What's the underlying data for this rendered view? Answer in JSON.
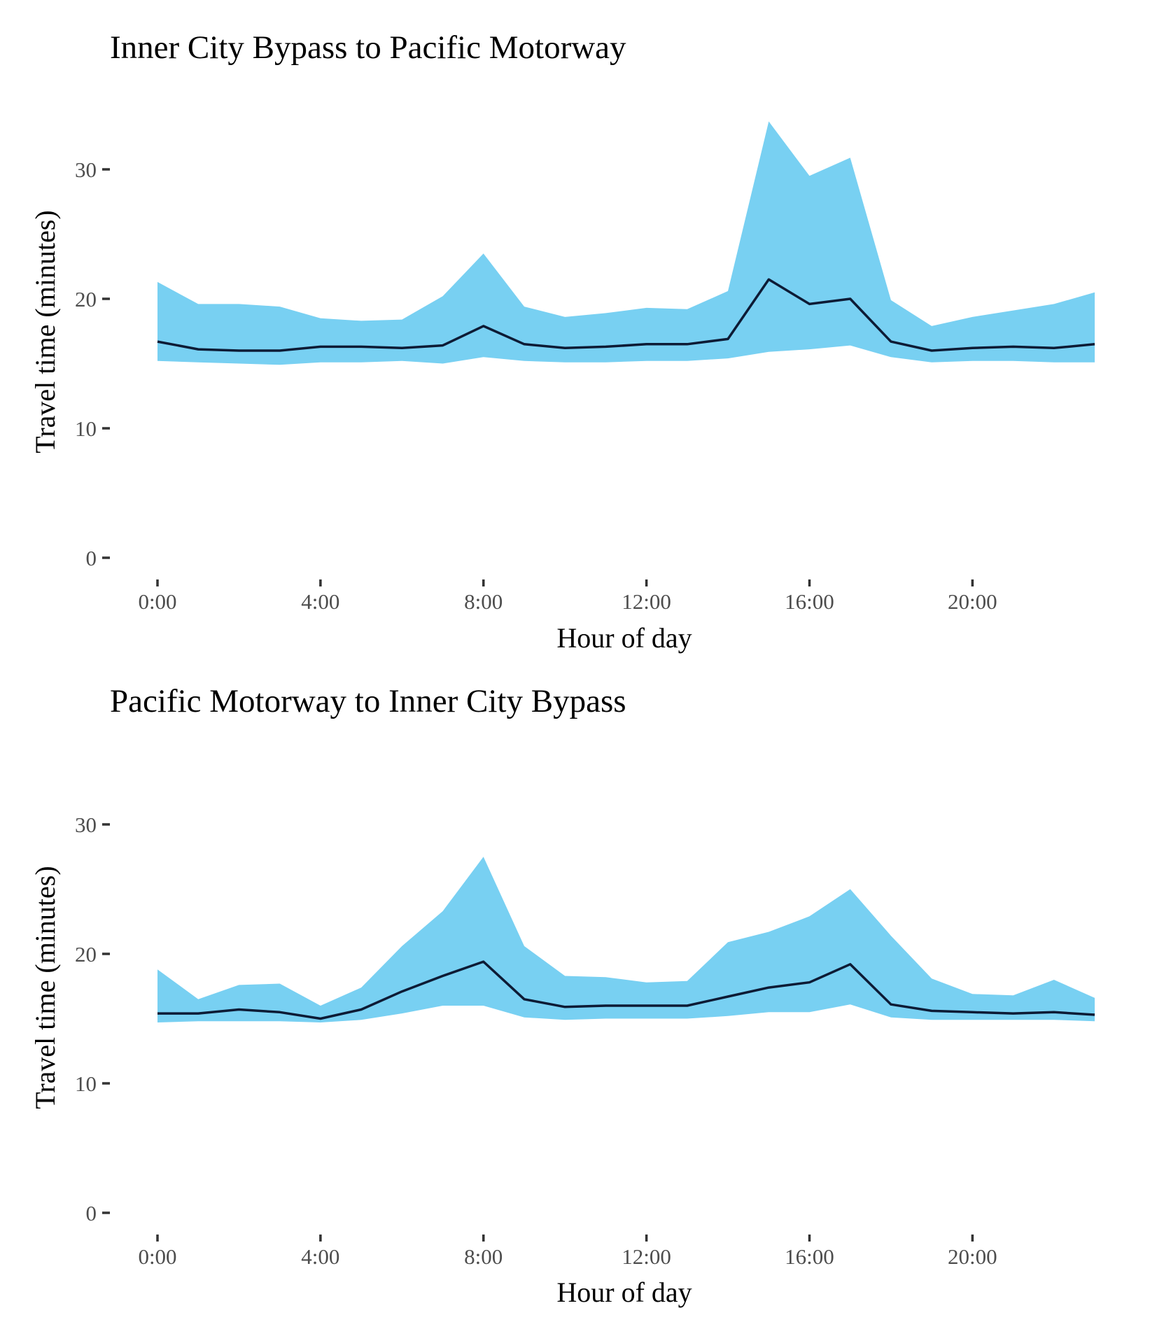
{
  "chart_data": [
    {
      "type": "area",
      "title": "Inner City Bypass to Pacific Motorway",
      "xlabel": "Hour of day",
      "ylabel": "Travel time (minutes)",
      "ylim": [
        0,
        35
      ],
      "yticks": [
        0,
        10,
        20,
        30
      ],
      "xticks": [
        0,
        4,
        8,
        12,
        16,
        20
      ],
      "xtick_labels": [
        "0:00",
        "4:00",
        "8:00",
        "12:00",
        "16:00",
        "20:00"
      ],
      "grid": false,
      "colors": {
        "band": "#78d0f2",
        "line": "#0d1b35"
      },
      "x": [
        0,
        1,
        2,
        3,
        4,
        5,
        6,
        7,
        8,
        9,
        10,
        11,
        12,
        13,
        14,
        15,
        16,
        17,
        18,
        19,
        20,
        21,
        22,
        23
      ],
      "series": [
        {
          "values": [
            16.7,
            16.1,
            16.0,
            16.0,
            16.3,
            16.3,
            16.2,
            16.4,
            17.9,
            16.5,
            16.2,
            16.3,
            16.5,
            16.5,
            16.9,
            21.5,
            19.6,
            20.0,
            16.7,
            16.0,
            16.2,
            16.3,
            16.2,
            16.5
          ]
        },
        {
          "values": [
            15.2,
            15.1,
            15.0,
            14.9,
            15.1,
            15.1,
            15.2,
            15.0,
            15.5,
            15.2,
            15.1,
            15.1,
            15.2,
            15.2,
            15.4,
            15.9,
            16.1,
            16.4,
            15.5,
            15.1,
            15.2,
            15.2,
            15.1,
            15.1
          ]
        },
        {
          "values": [
            21.3,
            19.6,
            19.6,
            19.4,
            18.5,
            18.3,
            18.4,
            20.2,
            23.5,
            19.4,
            18.6,
            18.9,
            19.3,
            19.2,
            20.6,
            33.7,
            29.5,
            30.9,
            19.9,
            17.9,
            18.6,
            19.1,
            19.6,
            20.5
          ]
        }
      ]
    },
    {
      "type": "area",
      "title": "Pacific Motorway to Inner City Bypass",
      "xlabel": "Hour of day",
      "ylabel": "Travel time (minutes)",
      "ylim": [
        0,
        35
      ],
      "yticks": [
        0,
        10,
        20,
        30
      ],
      "xticks": [
        0,
        4,
        8,
        12,
        16,
        20
      ],
      "xtick_labels": [
        "0:00",
        "4:00",
        "8:00",
        "12:00",
        "16:00",
        "20:00"
      ],
      "grid": false,
      "colors": {
        "band": "#78d0f2",
        "line": "#0d1b35"
      },
      "x": [
        0,
        1,
        2,
        3,
        4,
        5,
        6,
        7,
        8,
        9,
        10,
        11,
        12,
        13,
        14,
        15,
        16,
        17,
        18,
        19,
        20,
        21,
        22,
        23
      ],
      "series": [
        {
          "values": [
            15.4,
            15.4,
            15.7,
            15.5,
            15.0,
            15.7,
            17.1,
            18.3,
            19.4,
            16.5,
            15.9,
            16.0,
            16.0,
            16.0,
            16.7,
            17.4,
            17.8,
            19.2,
            16.1,
            15.6,
            15.5,
            15.4,
            15.5,
            15.3
          ]
        },
        {
          "values": [
            14.7,
            14.8,
            14.8,
            14.8,
            14.7,
            14.9,
            15.4,
            16.0,
            16.0,
            15.1,
            14.9,
            15.0,
            15.0,
            15.0,
            15.2,
            15.5,
            15.5,
            16.1,
            15.1,
            14.9,
            14.9,
            14.9,
            14.9,
            14.8
          ]
        },
        {
          "values": [
            18.8,
            16.5,
            17.6,
            17.7,
            16.0,
            17.4,
            20.6,
            23.3,
            27.5,
            20.6,
            18.3,
            18.2,
            17.8,
            17.9,
            20.9,
            21.7,
            22.9,
            25.0,
            21.4,
            18.1,
            16.9,
            16.8,
            18.0,
            16.6
          ]
        }
      ]
    }
  ]
}
